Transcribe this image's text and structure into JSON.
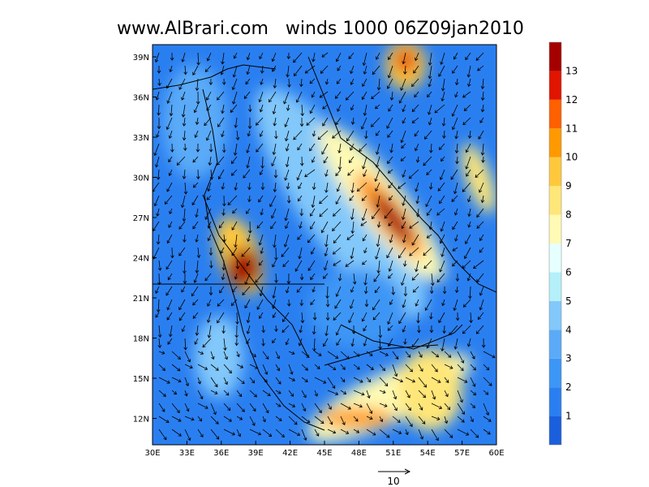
{
  "title": "www.AlBrari.com   winds 1000 06Z09jan2010",
  "lat_labels": [
    "39N",
    "36N",
    "33N",
    "30N",
    "27N",
    "24N",
    "21N",
    "18N",
    "15N",
    "12N"
  ],
  "lon_labels": [
    "30E",
    "33E",
    "36E",
    "39E",
    "42E",
    "45E",
    "48E",
    "51E",
    "54E",
    "57E",
    "60E"
  ],
  "colorbar": {
    "labels": [
      1,
      2,
      3,
      4,
      5,
      6,
      7,
      8,
      9,
      10,
      11,
      12,
      13
    ],
    "colors": [
      "#1a5fdc",
      "#2a7ff0",
      "#3c96f5",
      "#5aaaf8",
      "#82c8fa",
      "#b4f0fa",
      "#e6ffff",
      "#fffab4",
      "#ffe678",
      "#ffc83c",
      "#ff9900",
      "#ff6000",
      "#e11400",
      "#a50000"
    ]
  },
  "reference_vector": {
    "label": "10"
  }
}
